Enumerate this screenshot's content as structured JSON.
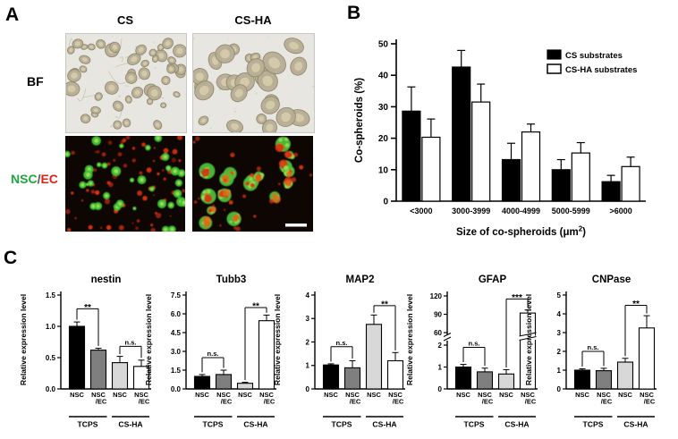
{
  "panels": {
    "a": {
      "label": "A",
      "columns": [
        "CS",
        "CS-HA"
      ],
      "row_top_label": "BF",
      "row_bottom": {
        "nsc": "NSC",
        "slash": "/",
        "ec": "EC"
      },
      "nsc_color": "#1fa63c",
      "ec_color": "#ea1d15",
      "has_scale_bar": true
    },
    "b": {
      "label": "B"
    },
    "c": {
      "label": "C"
    }
  },
  "chart_data": [
    {
      "id": "b-co-spheroids",
      "type": "bar",
      "panel": "B",
      "ylabel": "Co-spheroids (%)",
      "xlabel_main": "Size of co-spheroids (μm",
      "xlabel_sup": "2",
      "xlabel_close": ")",
      "categories": [
        "<3000",
        "3000-3999",
        "4000-4999",
        "5000-5999",
        ">6000"
      ],
      "series": [
        {
          "name": "CS substrates",
          "fill": "#000000",
          "values": [
            28.6,
            42.6,
            13.2,
            10.0,
            6.2
          ],
          "errors": [
            7.7,
            5.3,
            5.2,
            3.2,
            2.0
          ]
        },
        {
          "name": "CS-HA substrates",
          "fill": "#ffffff",
          "values": [
            20.3,
            31.5,
            22.0,
            15.3,
            11.0
          ],
          "errors": [
            5.8,
            5.7,
            2.5,
            3.3,
            3.0
          ]
        }
      ],
      "ylim": [
        0,
        50
      ],
      "yticks": [
        "0",
        "10",
        "20",
        "30",
        "40",
        "50"
      ],
      "legend_position": "top-right",
      "grid": false
    },
    {
      "id": "c-nestin",
      "type": "bar",
      "title": "nestin",
      "ylabel": "Relative expression level",
      "ylim": [
        0,
        1.5
      ],
      "yticks": [
        "0.0",
        "0.5",
        "1.0",
        "1.5"
      ],
      "values": [
        1.0,
        0.62,
        0.42,
        0.36
      ],
      "errors": [
        0.07,
        0.03,
        0.1,
        0.1
      ],
      "significance": [
        {
          "pair": [
            0,
            1
          ],
          "label": "**",
          "y": 1.28
        },
        {
          "pair": [
            2,
            3
          ],
          "label": "n.s.",
          "y": 0.68
        }
      ]
    },
    {
      "id": "c-tubb3",
      "type": "bar",
      "title": "Tubb3",
      "ylabel": "Relative expression level",
      "ylim": [
        0,
        7.5
      ],
      "yticks": [
        "0.0",
        "1.5",
        "3.0",
        "4.5",
        "6.0",
        "7.5"
      ],
      "values": [
        1.0,
        1.15,
        0.45,
        5.45
      ],
      "errors": [
        0.15,
        0.35,
        0.08,
        0.45
      ],
      "significance": [
        {
          "pair": [
            0,
            1
          ],
          "label": "n.s.",
          "y": 2.5
        },
        {
          "pair": [
            2,
            3
          ],
          "label": "**",
          "y": 6.5
        }
      ]
    },
    {
      "id": "c-map2",
      "type": "bar",
      "title": "MAP2",
      "ylabel": "Relative expression level",
      "ylim": [
        0,
        4
      ],
      "yticks": [
        "0",
        "1",
        "2",
        "3",
        "4"
      ],
      "values": [
        1.02,
        0.9,
        2.75,
        1.2
      ],
      "errors": [
        0.05,
        0.3,
        0.4,
        0.35
      ],
      "significance": [
        {
          "pair": [
            0,
            1
          ],
          "label": "n.s.",
          "y": 1.8
        },
        {
          "pair": [
            2,
            3
          ],
          "label": "**",
          "y": 3.55
        }
      ]
    },
    {
      "id": "c-gfap",
      "type": "bar",
      "title": "GFAP",
      "ylabel": "Relative expression level",
      "axis_break": {
        "lower": {
          "range": [
            0,
            2
          ],
          "ticks": [
            "0",
            "1",
            "2"
          ]
        },
        "upper": {
          "range": [
            60,
            120
          ],
          "ticks": [
            "60",
            "90",
            "120"
          ]
        }
      },
      "values": [
        1.0,
        0.78,
        0.68,
        92
      ],
      "errors": [
        0.12,
        0.17,
        0.2,
        5
      ],
      "significance": [
        {
          "pair": [
            0,
            1
          ],
          "label": "n.s.",
          "y": 1.9
        },
        {
          "pair": [
            2,
            3
          ],
          "label": "***",
          "y": 115
        }
      ]
    },
    {
      "id": "c-cnpase",
      "type": "bar",
      "title": "CNPase",
      "ylabel": "Relative expression level",
      "ylim": [
        0,
        5
      ],
      "yticks": [
        "0",
        "1",
        "2",
        "3",
        "4",
        "5"
      ],
      "values": [
        1.0,
        0.97,
        1.43,
        3.25
      ],
      "errors": [
        0.07,
        0.13,
        0.2,
        0.65
      ],
      "significance": [
        {
          "pair": [
            0,
            1
          ],
          "label": "n.s.",
          "y": 2.0
        },
        {
          "pair": [
            2,
            3
          ],
          "label": "**",
          "y": 4.45
        }
      ]
    }
  ],
  "c_common": {
    "bar_label_lines": [
      [
        "NSC"
      ],
      [
        "NSC",
        "/EC"
      ],
      [
        "NSC"
      ],
      [
        "NSC",
        "/EC"
      ]
    ],
    "groups": [
      "TCPS",
      "CS-HA"
    ],
    "bar_fills": [
      "#000000",
      "#7f7f7f",
      "#d8d8d8",
      "#ffffff"
    ]
  }
}
